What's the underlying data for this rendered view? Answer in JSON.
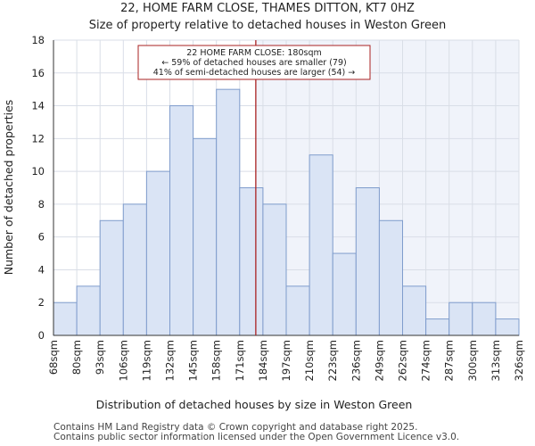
{
  "chart_data": {
    "type": "bar",
    "title": "22, HOME FARM CLOSE, THAMES DITTON, KT7 0HZ",
    "subtitle": "Size of property relative to detached houses in Weston Green",
    "xlabel": "Distribution of detached houses by size in Weston Green",
    "ylabel": "Number of detached properties",
    "ylim": [
      0,
      18
    ],
    "yticks": [
      0,
      2,
      4,
      6,
      8,
      10,
      12,
      14,
      16,
      18
    ],
    "bin_edges": [
      "68sqm",
      "80sqm",
      "93sqm",
      "106sqm",
      "119sqm",
      "132sqm",
      "145sqm",
      "158sqm",
      "171sqm",
      "184sqm",
      "197sqm",
      "210sqm",
      "223sqm",
      "236sqm",
      "249sqm",
      "262sqm",
      "274sqm",
      "287sqm",
      "300sqm",
      "313sqm",
      "326sqm"
    ],
    "values": [
      2,
      3,
      7,
      8,
      10,
      14,
      12,
      15,
      9,
      8,
      3,
      11,
      5,
      9,
      7,
      3,
      1,
      2,
      2,
      1
    ],
    "marker": {
      "value": 180,
      "label": "22 HOME FARM CLOSE: 180sqm",
      "line2": "← 59% of detached houses are smaller (79)",
      "line3": "41% of semi-detached houses are larger (54) →"
    },
    "colors": {
      "bar_fill": "#dae4f5",
      "bar_stroke": "#7f9ccc",
      "marker": "#aa2222",
      "grid": "#d9dee7",
      "highlight": "#f0f3fa"
    }
  },
  "footer": {
    "line1": "Contains HM Land Registry data © Crown copyright and database right 2025.",
    "line2": "Contains public sector information licensed under the Open Government Licence v3.0."
  }
}
